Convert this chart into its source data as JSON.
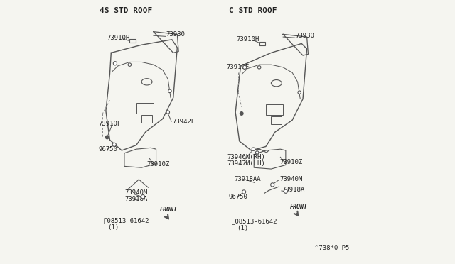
{
  "bg_color": "#f5f5f0",
  "line_color": "#555555",
  "text_color": "#222222",
  "title_left": "4S STD ROOF",
  "title_right": "C STD ROOF",
  "diagram_number": "^738*0 P5"
}
